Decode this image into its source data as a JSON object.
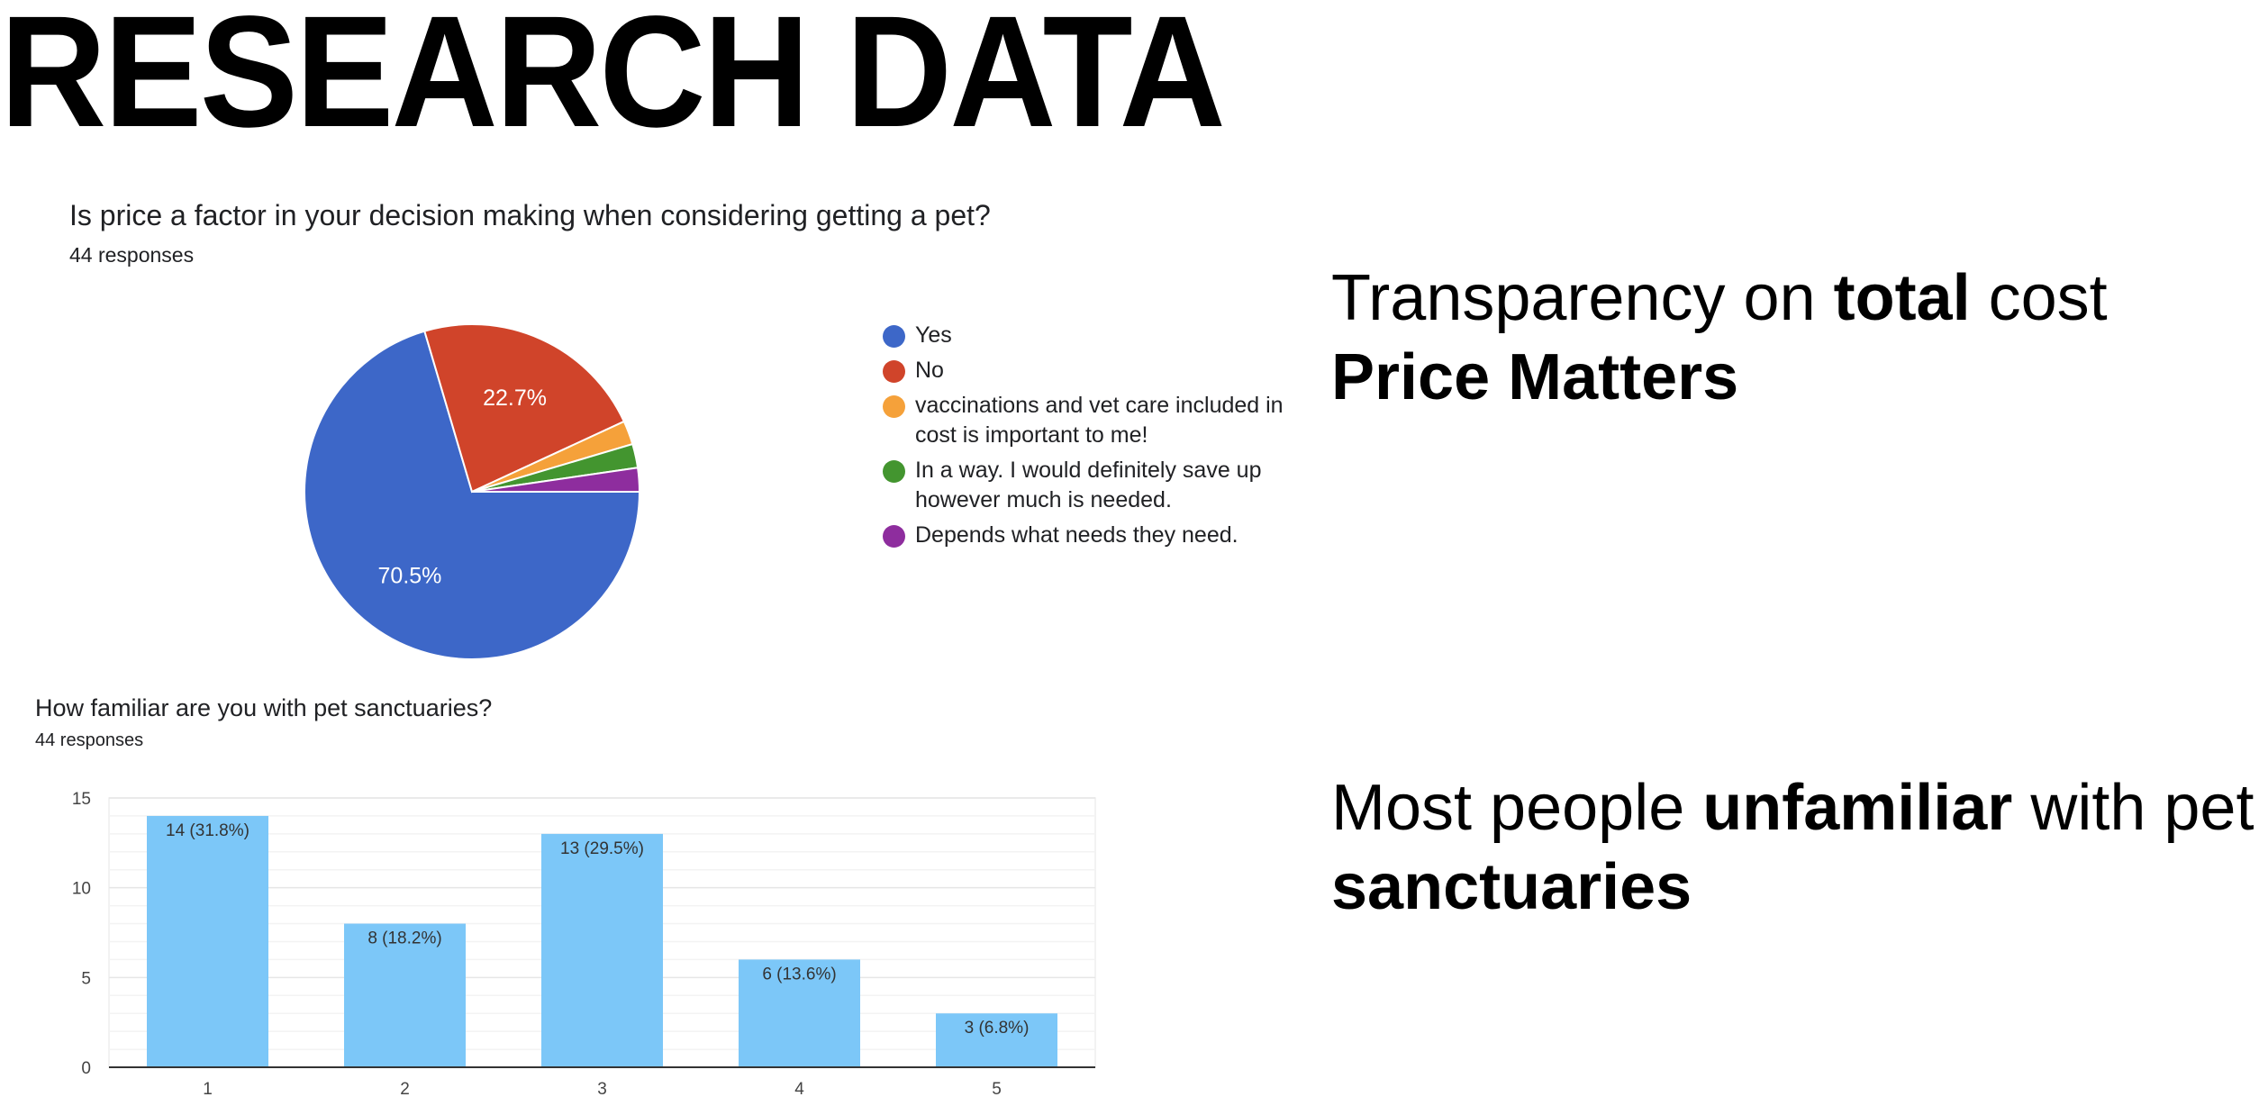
{
  "page": {
    "title": "RESEARCH DATA"
  },
  "chart_data": [
    {
      "type": "pie",
      "title": "Is price a factor in your decision making when considering getting a pet?",
      "subtitle": "44 responses",
      "series": [
        {
          "name": "Yes",
          "value": 70.5,
          "color": "#3d67c8",
          "label": "70.5%"
        },
        {
          "name": "No",
          "value": 22.7,
          "color": "#d0442a",
          "label": "22.7%"
        },
        {
          "name": "vaccinations and vet care included in cost is important to me!",
          "value": 2.3,
          "color": "#f5a13a",
          "label": ""
        },
        {
          "name": "In a way. I would definitely save up however much is needed.",
          "value": 2.3,
          "color": "#43952f",
          "label": ""
        },
        {
          "name": "Depends what needs they need.",
          "value": 2.3,
          "color": "#8e2d9e",
          "label": ""
        }
      ],
      "legend_position": "right"
    },
    {
      "type": "bar",
      "title": "How familiar are you with pet sanctuaries?",
      "subtitle": "44 responses",
      "categories": [
        "1",
        "2",
        "3",
        "4",
        "5"
      ],
      "values": [
        14,
        8,
        13,
        6,
        3
      ],
      "data_labels": [
        "14 (31.8%)",
        "8 (18.2%)",
        "13 (29.5%)",
        "6 (13.6%)",
        "3 (6.8%)"
      ],
      "ylim": [
        0,
        15
      ],
      "yticks": [
        "0",
        "5",
        "10",
        "15"
      ],
      "bar_color": "#7cc7f8",
      "grid": true
    }
  ],
  "callouts": {
    "price": {
      "line1_pre": "Transparency on ",
      "line1_bold": "total",
      "line1_post": " cost",
      "line2_bold": "Price Matters"
    },
    "familiarity": {
      "line1_pre": "Most people ",
      "line1_bold": "unfamiliar",
      "line1_post": " with pet",
      "line2_bold": "sanctuaries"
    }
  }
}
